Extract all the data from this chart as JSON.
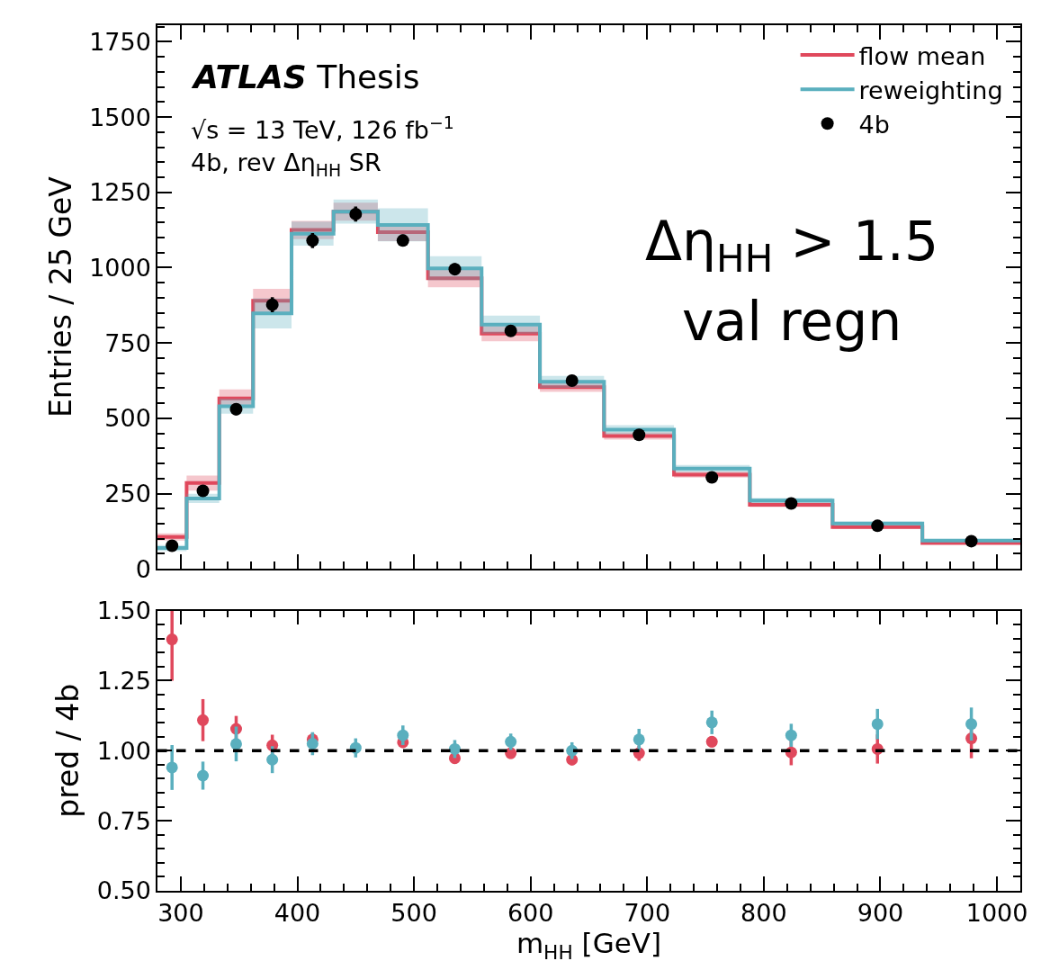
{
  "chart_data": [
    {
      "type": "step",
      "ylabel": "Entries / 25 GeV",
      "x": [
        280,
        305,
        333,
        362,
        395,
        431,
        469,
        512,
        558,
        608,
        663,
        723,
        788,
        859,
        936,
        1020
      ],
      "series": [
        {
          "name": "flow mean",
          "color": "#e0485c",
          "values": [
            106,
            285,
            566,
            890,
            1125,
            1186,
            1118,
            965,
            781,
            603,
            441,
            313,
            213,
            139,
            86,
            86
          ],
          "lower": [
            94,
            260,
            536,
            850,
            1095,
            1156,
            1088,
            935,
            756,
            588,
            429,
            303,
            205,
            133,
            81,
            81
          ],
          "upper": [
            118,
            310,
            596,
            930,
            1155,
            1216,
            1148,
            995,
            806,
            618,
            453,
            323,
            221,
            145,
            91,
            91
          ]
        },
        {
          "name": "reweighting",
          "color": "#5aafbe",
          "values": [
            69,
            234,
            540,
            848,
            1113,
            1186,
            1142,
            998,
            811,
            621,
            462,
            333,
            227,
            151,
            94,
            94
          ],
          "lower": [
            59,
            219,
            515,
            798,
            1073,
            1146,
            1087,
            958,
            781,
            601,
            447,
            321,
            219,
            145,
            89,
            89
          ],
          "upper": [
            79,
            249,
            565,
            898,
            1153,
            1226,
            1197,
            1038,
            841,
            641,
            477,
            345,
            235,
            157,
            99,
            99
          ]
        },
        {
          "name": "4b",
          "type": "scatter",
          "color": "#000000",
          "marker": "circle",
          "x": [
            292.5,
            319,
            347.5,
            378.5,
            413,
            450,
            490.5,
            535,
            583,
            635.5,
            693,
            755.5,
            823.5,
            897.5,
            978
          ],
          "values": [
            77,
            259,
            530,
            877,
            1090,
            1178,
            1090,
            995,
            790,
            625,
            445,
            304,
            217,
            143,
            92
          ],
          "errors": [
            8,
            15,
            20,
            25,
            25,
            25,
            20,
            20,
            18,
            15,
            13,
            11,
            9,
            8,
            7
          ]
        }
      ],
      "xlim": [
        280,
        1020
      ],
      "xticks": [
        300,
        400,
        500,
        600,
        700,
        800,
        900,
        1000
      ],
      "ylim": [
        0,
        1805
      ],
      "yticks": [
        0,
        250,
        500,
        750,
        1000,
        1250,
        1500,
        1750
      ],
      "tick_labels": "y",
      "legend": "top right",
      "annotations": [
        "ATLAS Thesis",
        "√s = 13 TeV, 126 fb$^{−1}$",
        "4b, rev Δη$_{HH}$ SR",
        "Δη$_{HH}$ > 1.5",
        "val regn"
      ]
    },
    {
      "type": "scatter",
      "xlabel": "m$_{HH}$ [GeV]",
      "ylabel": "pred / 4b",
      "marker": "circle",
      "legend": false,
      "series": [
        {
          "color": "#e0485c",
          "x": [
            292.5,
            319,
            347.5,
            378.5,
            413,
            450,
            490.5,
            535,
            583,
            635.5,
            693,
            755.5,
            823.5,
            897.5,
            978
          ],
          "values": [
            1.397,
            1.109,
            1.078,
            1.019,
            1.04,
            null,
            1.03,
            0.973,
            0.991,
            0.968,
            0.991,
            1.032,
            0.994,
            1.006,
            1.044
          ],
          "errors": [
            [
              1.25,
              1.5
            ],
            0.075,
            0.046,
            0.038,
            0.02,
            null,
            0.02,
            0.02,
            0.02,
            0.02,
            0.027,
            0.02,
            0.046,
            0.052,
            0.071
          ]
        },
        {
          "color": "#5aafbe",
          "x": [
            292.5,
            319,
            347.5,
            378.5,
            413,
            450,
            490.5,
            535,
            583,
            635.5,
            693,
            755.5,
            823.5,
            897.5,
            978
          ],
          "values": [
            0.94,
            0.911,
            1.024,
            0.968,
            1.025,
            1.01,
            1.055,
            1.006,
            1.032,
            1.0,
            1.04,
            1.101,
            1.055,
            1.095,
            1.095
          ],
          "errors": [
            0.08,
            0.05,
            0.062,
            0.048,
            0.041,
            0.034,
            0.035,
            0.032,
            0.029,
            0.03,
            0.038,
            0.042,
            0.041,
            0.054,
            0.059
          ]
        }
      ],
      "ref_lines": [
        {
          "axis": "y",
          "value": 1.0,
          "color": "#000000",
          "line_style": "dashed"
        }
      ],
      "xlim": [
        280,
        1020
      ],
      "xticks": [
        300,
        400,
        500,
        600,
        700,
        800,
        900,
        1000
      ],
      "ylim": [
        0.5,
        1.5
      ],
      "yticks": [
        {
          "value": 0.5,
          "label": "0.50"
        },
        {
          "value": 0.75,
          "label": "0.75"
        },
        {
          "value": 1.0,
          "label": "1.00"
        },
        {
          "value": 1.25,
          "label": "1.25"
        },
        {
          "value": 1.5,
          "label": "1.50"
        }
      ]
    }
  ]
}
